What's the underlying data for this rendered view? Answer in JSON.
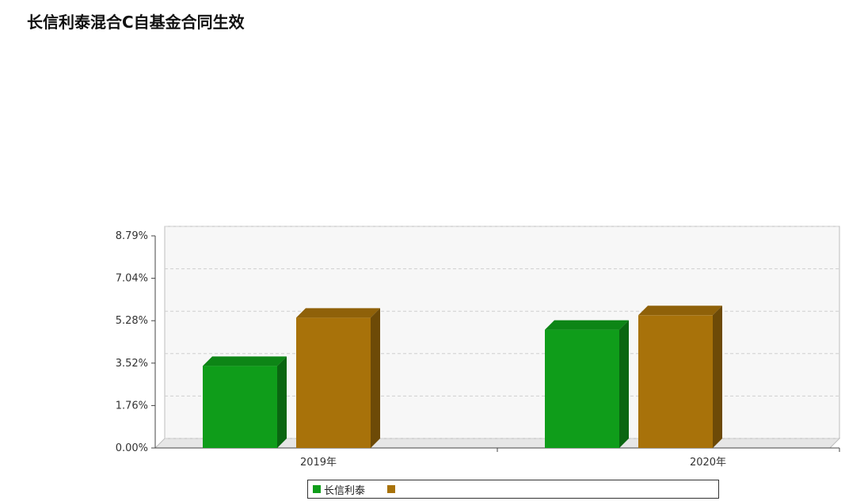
{
  "title": "长信利泰混合C自基金合同生效",
  "colors": {
    "background": "#ffffff",
    "series_fund": "#0f9d1a",
    "series_benchmark": "#a8720a",
    "series_other": "#5a0f0a",
    "axis": "#444444",
    "grid": "#cfcfcf"
  },
  "chart_data": {
    "type": "bar",
    "categories": [
      "2019年",
      "2020年"
    ],
    "ylim": [
      0,
      8.79
    ],
    "y_ticks": [
      "0.00%",
      "1.76%",
      "3.52%",
      "5.28%",
      "7.04%",
      "8.79%"
    ],
    "series": [
      {
        "name": "长信利泰",
        "values": [
          3.4,
          4.9
        ],
        "color": "#0f9d1a"
      },
      {
        "name": "",
        "values": [
          5.4,
          5.5
        ],
        "color": "#a8720a"
      }
    ],
    "legend_position": "bottom",
    "grid": true
  },
  "legend": {
    "items": [
      {
        "label": "长信利泰",
        "color": "#0f9d1a"
      },
      {
        "label": "",
        "color": "#a8720a"
      }
    ]
  }
}
